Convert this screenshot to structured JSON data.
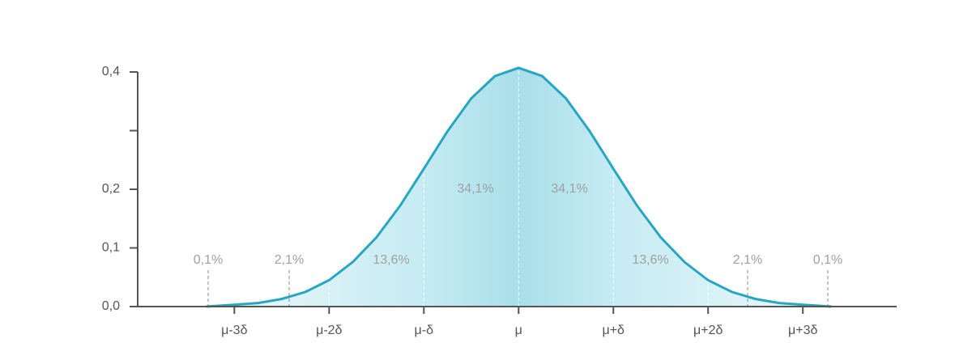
{
  "chart_data": {
    "type": "area",
    "x": [
      -3.3,
      -3,
      -2.75,
      -2.5,
      -2.25,
      -2,
      -1.75,
      -1.5,
      -1.25,
      -1,
      -0.75,
      -0.5,
      -0.25,
      0,
      0.25,
      0.5,
      0.75,
      1,
      1.25,
      1.5,
      1.75,
      2,
      2.25,
      2.5,
      2.75,
      3,
      3.3
    ],
    "y": [
      0,
      0.003,
      0.006,
      0.013,
      0.025,
      0.045,
      0.076,
      0.118,
      0.172,
      0.235,
      0.299,
      0.355,
      0.393,
      0.407,
      0.393,
      0.355,
      0.299,
      0.235,
      0.172,
      0.118,
      0.076,
      0.045,
      0.025,
      0.013,
      0.006,
      0.003,
      0
    ],
    "color": "#27a6c2",
    "xlim": [
      -4.02,
      3.99
    ],
    "ylim": [
      0,
      0.4
    ],
    "xticks": [
      {
        "value": -3,
        "label": "μ-3δ"
      },
      {
        "value": -2,
        "label": "μ-2δ"
      },
      {
        "value": -1,
        "label": "μ-δ"
      },
      {
        "value": 0,
        "label": "μ"
      },
      {
        "value": 1,
        "label": "μ+δ"
      },
      {
        "value": 2,
        "label": "μ+2δ"
      },
      {
        "value": 3,
        "label": "μ+3δ"
      }
    ],
    "yticks": [
      {
        "value": 0,
        "label": "0,0"
      },
      {
        "value": 0.1,
        "label": "0,1"
      },
      {
        "value": 0.2,
        "label": "0,2"
      },
      {
        "value": 0.3,
        "label": null
      },
      {
        "value": 0.4,
        "label": "0,4"
      }
    ],
    "annotations": [
      "0,1%",
      "2,1%",
      "13,6%",
      "34,1%",
      "34,1%",
      "13,6%",
      "2,1%",
      "0,1%"
    ]
  }
}
